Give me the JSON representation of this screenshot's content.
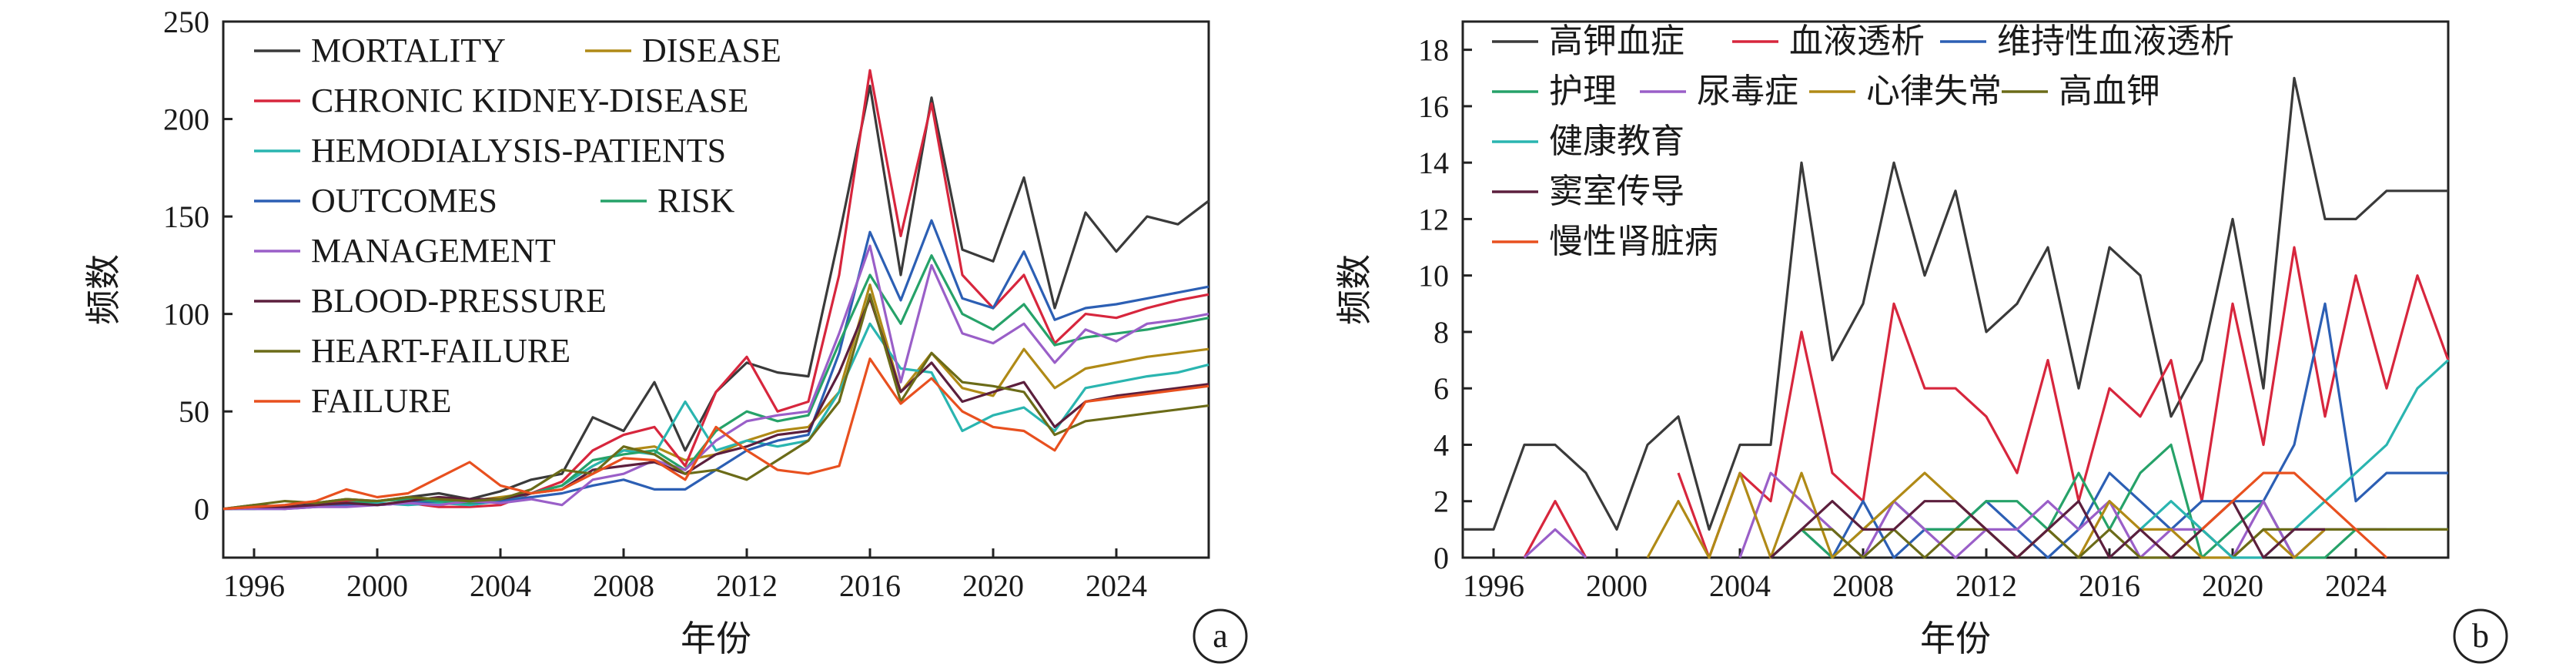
{
  "chart_data": [
    {
      "type": "line",
      "panel_label": "a",
      "xlabel": "年份",
      "ylabel": "频数",
      "xlim": [
        1995,
        2027
      ],
      "ylim": [
        -25,
        250
      ],
      "xticks": [
        1996,
        2000,
        2004,
        2008,
        2012,
        2016,
        2020,
        2024
      ],
      "yticks": [
        0,
        50,
        100,
        150,
        200,
        250
      ],
      "legend_position": "top-left",
      "x": [
        1995,
        1996,
        1997,
        1998,
        1999,
        2000,
        2001,
        2002,
        2003,
        2004,
        2005,
        2006,
        2007,
        2008,
        2009,
        2010,
        2011,
        2012,
        2013,
        2014,
        2015,
        2016,
        2017,
        2018,
        2019,
        2020,
        2021,
        2022,
        2023,
        2024,
        2025,
        2026,
        2027
      ],
      "series": [
        {
          "name": "MORTALITY",
          "color": "#3a3a3a",
          "values": [
            0,
            2,
            1,
            3,
            5,
            4,
            6,
            8,
            5,
            9,
            15,
            18,
            47,
            40,
            65,
            30,
            60,
            75,
            70,
            68,
            140,
            217,
            120,
            211,
            133,
            127,
            170,
            103,
            152,
            132,
            150,
            146,
            158
          ]
        },
        {
          "name": "DISEASE",
          "color": "#b08a16",
          "values": [
            0,
            1,
            1,
            2,
            3,
            2,
            4,
            5,
            4,
            6,
            8,
            12,
            22,
            30,
            32,
            25,
            28,
            35,
            40,
            42,
            60,
            115,
            60,
            80,
            62,
            58,
            82,
            62,
            72,
            75,
            78,
            80,
            82
          ]
        },
        {
          "name": "CHRONIC KIDNEY-DISEASE",
          "color": "#d7263d",
          "values": [
            0,
            1,
            0,
            2,
            4,
            2,
            3,
            1,
            1,
            2,
            8,
            14,
            30,
            38,
            42,
            22,
            60,
            78,
            50,
            55,
            120,
            225,
            140,
            208,
            120,
            103,
            120,
            85,
            100,
            98,
            103,
            107,
            110
          ]
        },
        {
          "name": "HEMODIALYSIS-PATIENTS",
          "color": "#2ab5b0",
          "values": [
            0,
            1,
            1,
            2,
            3,
            3,
            2,
            3,
            2,
            4,
            8,
            12,
            22,
            30,
            28,
            55,
            30,
            35,
            32,
            35,
            60,
            95,
            72,
            70,
            40,
            48,
            52,
            40,
            62,
            65,
            68,
            70,
            74
          ]
        },
        {
          "name": "OUTCOMES",
          "color": "#2c5fb4",
          "values": [
            0,
            0,
            0,
            1,
            2,
            2,
            3,
            4,
            3,
            4,
            6,
            8,
            12,
            15,
            10,
            10,
            20,
            30,
            35,
            38,
            80,
            142,
            107,
            148,
            108,
            103,
            132,
            97,
            103,
            105,
            108,
            111,
            114
          ]
        },
        {
          "name": "RISK",
          "color": "#26a269",
          "values": [
            0,
            0,
            1,
            2,
            3,
            4,
            5,
            4,
            3,
            5,
            8,
            12,
            25,
            28,
            30,
            20,
            40,
            50,
            45,
            48,
            85,
            120,
            95,
            130,
            100,
            92,
            105,
            84,
            88,
            90,
            92,
            95,
            98
          ]
        },
        {
          "name": "MANAGEMENT",
          "color": "#9a5fc8",
          "values": [
            0,
            0,
            0,
            1,
            1,
            2,
            3,
            2,
            4,
            3,
            5,
            2,
            15,
            18,
            25,
            20,
            35,
            45,
            48,
            50,
            90,
            135,
            65,
            125,
            90,
            85,
            95,
            75,
            92,
            86,
            95,
            97,
            100
          ]
        },
        {
          "name": "BLOOD-PRESSURE",
          "color": "#5c1f3d",
          "values": [
            0,
            1,
            1,
            2,
            3,
            2,
            4,
            6,
            5,
            5,
            8,
            10,
            20,
            22,
            24,
            18,
            28,
            32,
            38,
            40,
            70,
            108,
            60,
            75,
            55,
            60,
            65,
            42,
            55,
            58,
            60,
            62,
            64
          ]
        },
        {
          "name": "HEART-FAILURE",
          "color": "#6b6b18",
          "values": [
            0,
            2,
            4,
            3,
            5,
            4,
            6,
            5,
            4,
            5,
            10,
            20,
            18,
            32,
            28,
            18,
            20,
            15,
            25,
            35,
            55,
            110,
            55,
            80,
            65,
            63,
            60,
            38,
            45,
            47,
            49,
            51,
            53
          ]
        },
        {
          "name": "FAILURE",
          "color": "#e8501f",
          "values": [
            0,
            1,
            2,
            4,
            10,
            6,
            8,
            16,
            24,
            12,
            8,
            10,
            18,
            26,
            25,
            15,
            42,
            30,
            20,
            18,
            22,
            77,
            54,
            67,
            50,
            42,
            40,
            30,
            55,
            57,
            59,
            61,
            63
          ]
        }
      ]
    },
    {
      "type": "line",
      "panel_label": "b",
      "xlabel": "年份",
      "ylabel": "频数",
      "xlim": [
        1995,
        2027
      ],
      "ylim": [
        0,
        19
      ],
      "xticks": [
        1996,
        2000,
        2004,
        2008,
        2012,
        2016,
        2020,
        2024
      ],
      "yticks": [
        0,
        2,
        4,
        6,
        8,
        10,
        12,
        14,
        16,
        18
      ],
      "legend_position": "top-left",
      "x": [
        1995,
        1996,
        1997,
        1998,
        1999,
        2000,
        2001,
        2002,
        2003,
        2004,
        2005,
        2006,
        2007,
        2008,
        2009,
        2010,
        2011,
        2012,
        2013,
        2014,
        2015,
        2016,
        2017,
        2018,
        2019,
        2020,
        2021,
        2022,
        2023,
        2024,
        2025,
        2026,
        2027
      ],
      "series": [
        {
          "name": "高钾血症",
          "color": "#3a3a3a",
          "values": [
            1,
            1,
            4,
            4,
            3,
            1,
            4,
            5,
            1,
            4,
            4,
            14,
            7,
            9,
            14,
            10,
            13,
            8,
            9,
            11,
            6,
            11,
            10,
            5,
            7,
            12,
            6,
            17,
            12,
            12,
            13,
            13,
            13
          ]
        },
        {
          "name": "血液透析",
          "color": "#d7263d",
          "values": [
            null,
            null,
            0,
            2,
            0,
            null,
            null,
            3,
            0,
            3,
            2,
            8,
            3,
            2,
            9,
            6,
            6,
            5,
            3,
            7,
            2,
            6,
            5,
            7,
            2,
            9,
            4,
            11,
            5,
            10,
            6,
            10,
            7
          ]
        },
        {
          "name": "维持性血液透析",
          "color": "#2c5fb4",
          "values": [
            null,
            null,
            null,
            null,
            null,
            null,
            null,
            null,
            null,
            null,
            0,
            1,
            0,
            2,
            0,
            1,
            1,
            2,
            1,
            0,
            1,
            3,
            2,
            1,
            2,
            2,
            2,
            4,
            9,
            2,
            3,
            3,
            3
          ]
        },
        {
          "name": "护理",
          "color": "#26a269",
          "values": [
            null,
            null,
            null,
            null,
            null,
            null,
            null,
            null,
            null,
            null,
            0,
            1,
            0,
            1,
            2,
            1,
            1,
            2,
            2,
            1,
            3,
            1,
            3,
            4,
            0,
            1,
            2,
            0,
            0,
            1,
            1,
            1,
            1
          ]
        },
        {
          "name": "尿毒症",
          "color": "#9a5fc8",
          "values": [
            null,
            null,
            0,
            1,
            0,
            null,
            null,
            null,
            null,
            0,
            3,
            2,
            1,
            0,
            2,
            1,
            0,
            1,
            1,
            2,
            1,
            2,
            0,
            1,
            1,
            0,
            2,
            0,
            1,
            1,
            1,
            null,
            null
          ]
        },
        {
          "name": "心律失常",
          "color": "#b08a16",
          "values": [
            null,
            null,
            null,
            null,
            null,
            null,
            0,
            2,
            0,
            3,
            0,
            3,
            0,
            1,
            2,
            3,
            2,
            1,
            0,
            1,
            0,
            2,
            1,
            1,
            0,
            0,
            1,
            0,
            1,
            null,
            null,
            null,
            null
          ]
        },
        {
          "name": "高血钾",
          "color": "#6b6b18",
          "values": [
            null,
            null,
            null,
            null,
            null,
            null,
            null,
            null,
            null,
            null,
            0,
            1,
            1,
            0,
            1,
            0,
            1,
            1,
            0,
            1,
            0,
            1,
            0,
            0,
            1,
            0,
            1,
            1,
            1,
            1,
            1,
            1,
            1
          ]
        },
        {
          "name": "健康教育",
          "color": "#2ab5b0",
          "values": [
            null,
            null,
            null,
            null,
            null,
            null,
            null,
            null,
            null,
            null,
            null,
            null,
            null,
            null,
            null,
            null,
            null,
            null,
            null,
            null,
            null,
            0,
            1,
            2,
            1,
            0,
            0,
            1,
            2,
            3,
            4,
            6,
            7
          ]
        },
        {
          "name": "窦室传导",
          "color": "#5c1f3d",
          "values": [
            null,
            null,
            null,
            null,
            null,
            null,
            null,
            null,
            null,
            null,
            0,
            1,
            2,
            1,
            1,
            2,
            2,
            1,
            0,
            1,
            2,
            0,
            1,
            0,
            1,
            2,
            0,
            1,
            1,
            null,
            null,
            null,
            null
          ]
        },
        {
          "name": "慢性肾脏病",
          "color": "#e8501f",
          "values": [
            null,
            null,
            null,
            null,
            null,
            null,
            null,
            null,
            null,
            null,
            null,
            null,
            null,
            null,
            null,
            null,
            null,
            null,
            null,
            null,
            null,
            null,
            null,
            null,
            1,
            2,
            3,
            3,
            2,
            1,
            0,
            null,
            null
          ]
        }
      ]
    }
  ]
}
